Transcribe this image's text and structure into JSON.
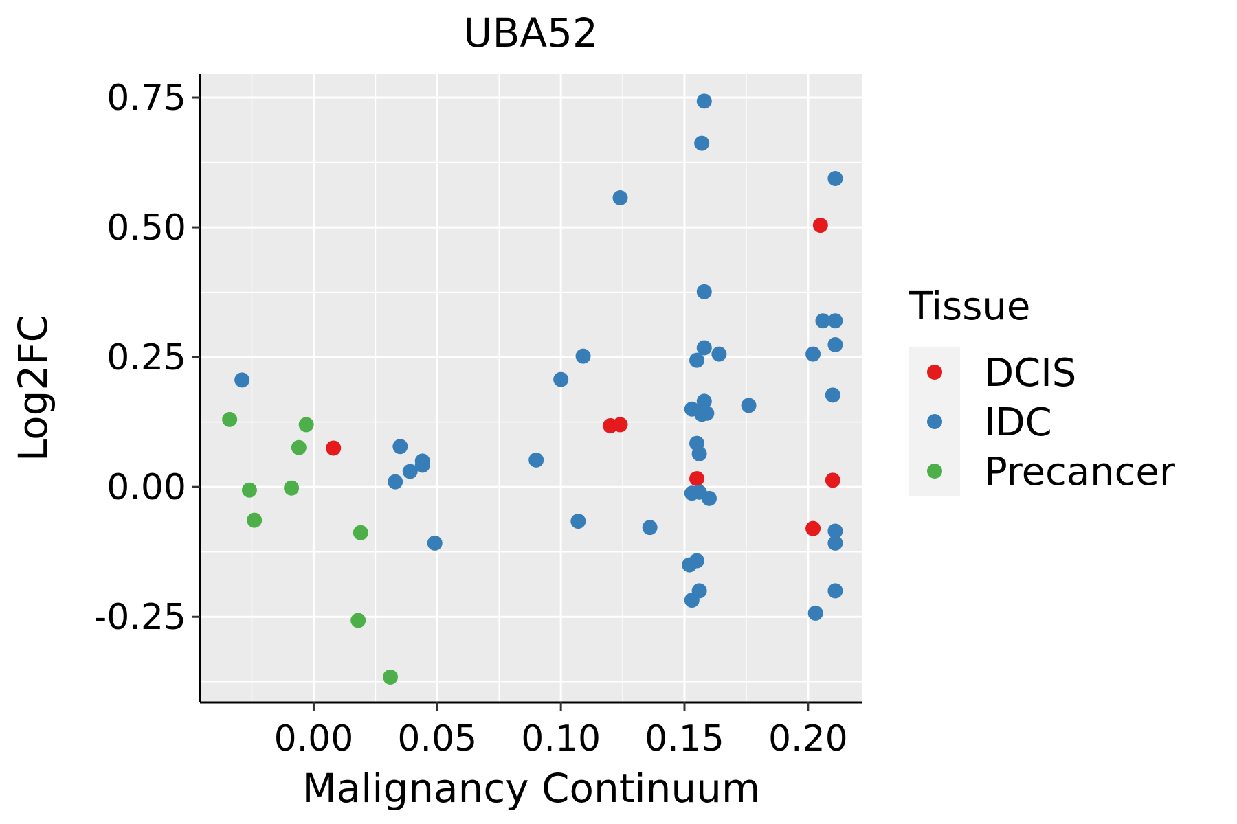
{
  "chart_data": {
    "type": "scatter",
    "title": "UBA52",
    "xlabel": "Malignancy Continuum",
    "ylabel": "Log2FC",
    "xlim": [
      -0.046,
      0.222
    ],
    "ylim": [
      -0.415,
      0.795
    ],
    "x_ticks": [
      0.0,
      0.05,
      0.1,
      0.15,
      0.2
    ],
    "x_tick_labels": [
      "0.00",
      "0.05",
      "0.10",
      "0.15",
      "0.20"
    ],
    "y_ticks": [
      -0.25,
      0.0,
      0.25,
      0.5,
      0.75
    ],
    "y_tick_labels": [
      "-0.25",
      "0.00",
      "0.25",
      "0.50",
      "0.75"
    ],
    "grid": true,
    "legend": {
      "title": "Tissue",
      "position": "right"
    },
    "series": [
      {
        "name": "DCIS",
        "color": "#E41A1C",
        "points": [
          [
            0.008,
            0.075
          ],
          [
            0.12,
            0.118
          ],
          [
            0.124,
            0.12
          ],
          [
            0.155,
            0.016
          ],
          [
            0.205,
            0.504
          ],
          [
            0.21,
            0.013
          ],
          [
            0.202,
            -0.08
          ]
        ]
      },
      {
        "name": "IDC",
        "color": "#377EB8",
        "points": [
          [
            -0.029,
            0.206
          ],
          [
            0.035,
            0.078
          ],
          [
            0.033,
            0.01
          ],
          [
            0.039,
            0.03
          ],
          [
            0.044,
            0.042
          ],
          [
            0.044,
            0.05
          ],
          [
            0.049,
            -0.108
          ],
          [
            0.09,
            0.052
          ],
          [
            0.1,
            0.207
          ],
          [
            0.109,
            0.252
          ],
          [
            0.107,
            -0.066
          ],
          [
            0.124,
            0.557
          ],
          [
            0.136,
            -0.078
          ],
          [
            0.158,
            0.743
          ],
          [
            0.157,
            0.662
          ],
          [
            0.158,
            0.376
          ],
          [
            0.158,
            0.268
          ],
          [
            0.164,
            0.256
          ],
          [
            0.155,
            0.244
          ],
          [
            0.158,
            0.165
          ],
          [
            0.153,
            0.15
          ],
          [
            0.157,
            0.14
          ],
          [
            0.159,
            0.142
          ],
          [
            0.176,
            0.157
          ],
          [
            0.155,
            0.084
          ],
          [
            0.156,
            0.064
          ],
          [
            0.153,
            -0.012
          ],
          [
            0.156,
            -0.01
          ],
          [
            0.16,
            -0.022
          ],
          [
            0.152,
            -0.15
          ],
          [
            0.155,
            -0.142
          ],
          [
            0.156,
            -0.2
          ],
          [
            0.153,
            -0.218
          ],
          [
            0.211,
            0.594
          ],
          [
            0.206,
            0.32
          ],
          [
            0.211,
            0.32
          ],
          [
            0.211,
            0.274
          ],
          [
            0.202,
            0.256
          ],
          [
            0.21,
            0.177
          ],
          [
            0.211,
            -0.085
          ],
          [
            0.211,
            -0.108
          ],
          [
            0.211,
            -0.2
          ],
          [
            0.203,
            -0.243
          ]
        ]
      },
      {
        "name": "Precancer",
        "color": "#4DAF4A",
        "points": [
          [
            -0.034,
            0.13
          ],
          [
            -0.003,
            0.12
          ],
          [
            -0.006,
            0.076
          ],
          [
            -0.026,
            -0.006
          ],
          [
            -0.009,
            -0.002
          ],
          [
            -0.024,
            -0.064
          ],
          [
            0.019,
            -0.088
          ],
          [
            0.018,
            -0.257
          ],
          [
            0.031,
            -0.366
          ]
        ]
      }
    ]
  }
}
